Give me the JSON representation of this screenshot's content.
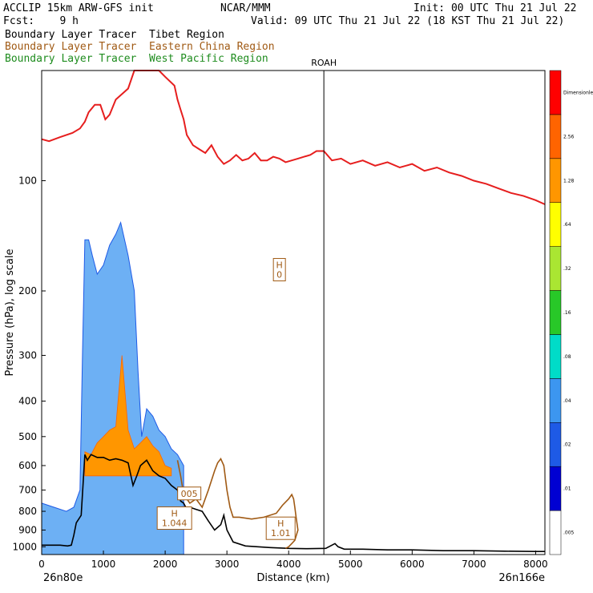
{
  "header": {
    "model": "ACCLIP 15km ARW-GFS init",
    "org": "NCAR/MMM",
    "init": "Init: 00 UTC Thu 21 Jul 22",
    "fcst": "Fcst:    9 h",
    "valid": "Valid: 09 UTC Thu 21 Jul 22 (18 KST Thu 21 Jul 22)"
  },
  "legend_lines": [
    {
      "label": "Boundary Layer Tracer  Tibet Region",
      "color": "#000000"
    },
    {
      "label": "Boundary Layer Tracer  Eastern China Region",
      "color": "#a05a14"
    },
    {
      "label": "Boundary Layer Tracer  West Pacific Region",
      "color": "#1e8c1e"
    }
  ],
  "chart_data": {
    "type": "contour-cross-section",
    "xlabel": "Distance (km)",
    "ylabel": "Pressure (hPa), log scale",
    "xlim": [
      0,
      8150
    ],
    "ylim": [
      1050,
      50
    ],
    "x_ticks": [
      0,
      1000,
      2000,
      3000,
      4000,
      5000,
      6000,
      7000,
      8000
    ],
    "x_tick_labels": [
      "0",
      "1000",
      "2000",
      "3000",
      "4000",
      "5000",
      "6000",
      "7000",
      "8000"
    ],
    "y_ticks": [
      100,
      200,
      300,
      400,
      500,
      600,
      700,
      800,
      900,
      1000
    ],
    "y_tick_labels": [
      "100",
      "200",
      "300",
      "400",
      "500",
      "600",
      "700",
      "800",
      "900",
      "1000"
    ],
    "left_endpoint": "26n80e",
    "right_endpoint": "26n166e",
    "vertical_marker": {
      "label": "ROAH",
      "x": 4570
    },
    "annotations": [
      {
        "text": [
          "H",
          "0"
        ],
        "x": 3850,
        "p": 175
      },
      {
        "text": [
          "005"
        ],
        "x": 2390,
        "p": 715
      },
      {
        "text": [
          "H",
          "1.044"
        ],
        "x": 2150,
        "p": 835
      },
      {
        "text": [
          "H",
          "1.01"
        ],
        "x": 3870,
        "p": 890
      }
    ],
    "colorbar": {
      "title": "Dimensionless",
      "colors": [
        "#ffffff",
        "#0000d2",
        "#1e5ae6",
        "#3c96f0",
        "#00dcc8",
        "#28c828",
        "#aae632",
        "#ffff00",
        "#ff9600",
        "#ff6400",
        "#ff0000"
      ],
      "labels": [
        ".005",
        ".01",
        ".02",
        ".04",
        ".08",
        ".16",
        ".32",
        ".64",
        "1.28",
        "2.56",
        "Dimensionless"
      ]
    },
    "series": [
      {
        "name": "Tropopause (red)",
        "color": "#e61e1e",
        "x": [
          0,
          120,
          300,
          500,
          620,
          700,
          760,
          860,
          950,
          1030,
          1100,
          1200,
          1350,
          1400,
          1500,
          1600,
          1750,
          1900,
          2000,
          2150,
          2200,
          2250,
          2300,
          2350,
          2450,
          2550,
          2650,
          2750,
          2850,
          2950,
          3050,
          3150,
          3250,
          3350,
          3450,
          3550,
          3650,
          3750,
          3850,
          3950,
          4050,
          4150,
          4250,
          4350,
          4450,
          4570,
          4700,
          4850,
          5000,
          5200,
          5400,
          5600,
          5800,
          6000,
          6200,
          6400,
          6600,
          6800,
          7000,
          7200,
          7400,
          7600,
          7800,
          8000,
          8150
        ],
        "p": [
          77,
          78,
          76,
          74,
          72,
          69,
          65,
          62,
          62,
          68,
          66,
          60,
          57,
          56,
          50,
          50,
          50,
          50,
          52,
          55,
          60,
          64,
          68,
          75,
          80,
          82,
          84,
          80,
          86,
          90,
          88,
          85,
          88,
          87,
          84,
          88,
          88,
          86,
          87,
          89,
          88,
          87,
          86,
          85,
          83,
          83,
          88,
          87,
          90,
          88,
          91,
          89,
          92,
          90,
          94,
          92,
          95,
          97,
          100,
          102,
          105,
          108,
          110,
          113,
          116
        ]
      },
      {
        "name": "Terrain (black)",
        "color": "#000000",
        "x": [
          0,
          200,
          300,
          420,
          480,
          520,
          560,
          640,
          700,
          740,
          800,
          900,
          1000,
          1100,
          1200,
          1300,
          1400,
          1480,
          1540,
          1600,
          1700,
          1800,
          1900,
          2000,
          2100,
          2200,
          2250,
          2300,
          2350,
          2400,
          2500,
          2600,
          2700,
          2800,
          2900,
          2950,
          3000,
          3100,
          3300,
          3500,
          3700,
          4000,
          4300,
          4600,
          4700,
          4750,
          4800,
          4900,
          5200,
          5600,
          6000,
          6500,
          7000,
          7500,
          8000,
          8150
        ],
        "p": [
          990,
          990,
          990,
          995,
          990,
          930,
          860,
          820,
          560,
          580,
          560,
          570,
          570,
          580,
          575,
          580,
          590,
          680,
          640,
          600,
          580,
          620,
          640,
          650,
          680,
          700,
          750,
          760,
          790,
          780,
          790,
          800,
          850,
          900,
          870,
          820,
          900,
          970,
          995,
          1000,
          1005,
          1010,
          1012,
          1010,
          990,
          980,
          1000,
          1015,
          1015,
          1020,
          1020,
          1025,
          1025,
          1028,
          1030,
          1030
        ]
      },
      {
        "name": "Eastern China tracer (brown)",
        "color": "#a05a14",
        "x": [
          2200,
          2250,
          2300,
          2400,
          2500,
          2600,
          2700,
          2800,
          2850,
          2900,
          2950,
          3000,
          3050,
          3100,
          3200,
          3400,
          3600,
          3800,
          3900,
          4000,
          4050,
          4080,
          4100,
          4120,
          4150,
          4100,
          4050,
          4000,
          3950
        ],
        "p": [
          580,
          640,
          720,
          760,
          740,
          780,
          700,
          620,
          590,
          575,
          600,
          700,
          780,
          830,
          830,
          840,
          830,
          810,
          770,
          740,
          720,
          740,
          780,
          830,
          900,
          960,
          980,
          1000,
          1010
        ]
      },
      {
        "name": "Tibet tracer shaded (orange core)",
        "color": "#ff9600",
        "x": [
          700,
          800,
          900,
          1000,
          1100,
          1200,
          1300,
          1400,
          1500,
          1600,
          1700,
          1800,
          1900,
          2000,
          2100
        ],
        "p": [
          550,
          560,
          520,
          500,
          480,
          470,
          300,
          480,
          540,
          520,
          500,
          530,
          550,
          600,
          610
        ]
      },
      {
        "name": "Tibet tracer outer (blue)",
        "color": "#1e5ae6",
        "x": [
          0,
          200,
          400,
          520,
          620,
          660,
          700,
          760,
          820,
          900,
          1000,
          1100,
          1200,
          1280,
          1400,
          1500,
          1560,
          1620,
          1700,
          1800,
          1900,
          2000,
          2100,
          2200,
          2300
        ],
        "p": [
          760,
          780,
          800,
          780,
          700,
          300,
          145,
          145,
          160,
          180,
          170,
          150,
          140,
          130,
          160,
          200,
          330,
          500,
          420,
          440,
          480,
          500,
          540,
          560,
          600
        ]
      }
    ]
  }
}
